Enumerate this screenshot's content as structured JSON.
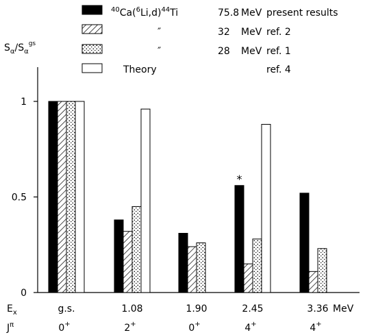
{
  "chart_data": {
    "type": "bar",
    "ylabel_main": "S",
    "ylabel_main_sub": "α",
    "ylabel_sep": "/",
    "ylabel_den": "S",
    "ylabel_den_sub": "α",
    "ylabel_den_sup": "gs",
    "ylim": [
      0,
      1.3
    ],
    "yticks": [
      "0",
      "0.5",
      "1"
    ],
    "ytick_values": [
      0,
      0.5,
      1
    ],
    "x_row_label": "E",
    "x_row_label_sub": "x",
    "x_unit": "MeV",
    "j_row_label": "J",
    "j_row_label_sup": "π",
    "categories": [
      "g.s.",
      "1.08",
      "1.90",
      "2.45",
      "3.36"
    ],
    "spins": [
      "0",
      "2",
      "0",
      "4",
      "4"
    ],
    "spin_parity": "+",
    "series": [
      {
        "pattern": "solid",
        "legend_reaction_pre_sup": "40",
        "legend_reaction_a": "Ca(",
        "legend_reaction_mid_sup": "6",
        "legend_reaction_b": "Li,d)",
        "legend_reaction_post_sup": "44",
        "legend_reaction_c": "Ti",
        "energy": "75.8",
        "unit": "MeV",
        "ref": "present results",
        "values": [
          1.0,
          0.38,
          0.31,
          0.56,
          0.52
        ]
      },
      {
        "pattern": "hatch",
        "ditto": "″",
        "energy": "32",
        "unit": "MeV",
        "ref": "ref. 2",
        "values": [
          1.0,
          0.32,
          0.24,
          0.15,
          0.11
        ]
      },
      {
        "pattern": "dots",
        "ditto": "″",
        "energy": "28",
        "unit": "MeV",
        "ref": "ref. 1",
        "values": [
          1.0,
          0.45,
          0.26,
          0.28,
          0.23
        ]
      },
      {
        "pattern": "open",
        "legend_label": "Theory",
        "ref": "ref. 4",
        "values": [
          1.0,
          0.96,
          null,
          0.88,
          null
        ]
      }
    ],
    "annotations": [
      {
        "text": "*",
        "category_index": 3,
        "series_index": 0
      }
    ],
    "grid": false,
    "legend_position": "top"
  }
}
